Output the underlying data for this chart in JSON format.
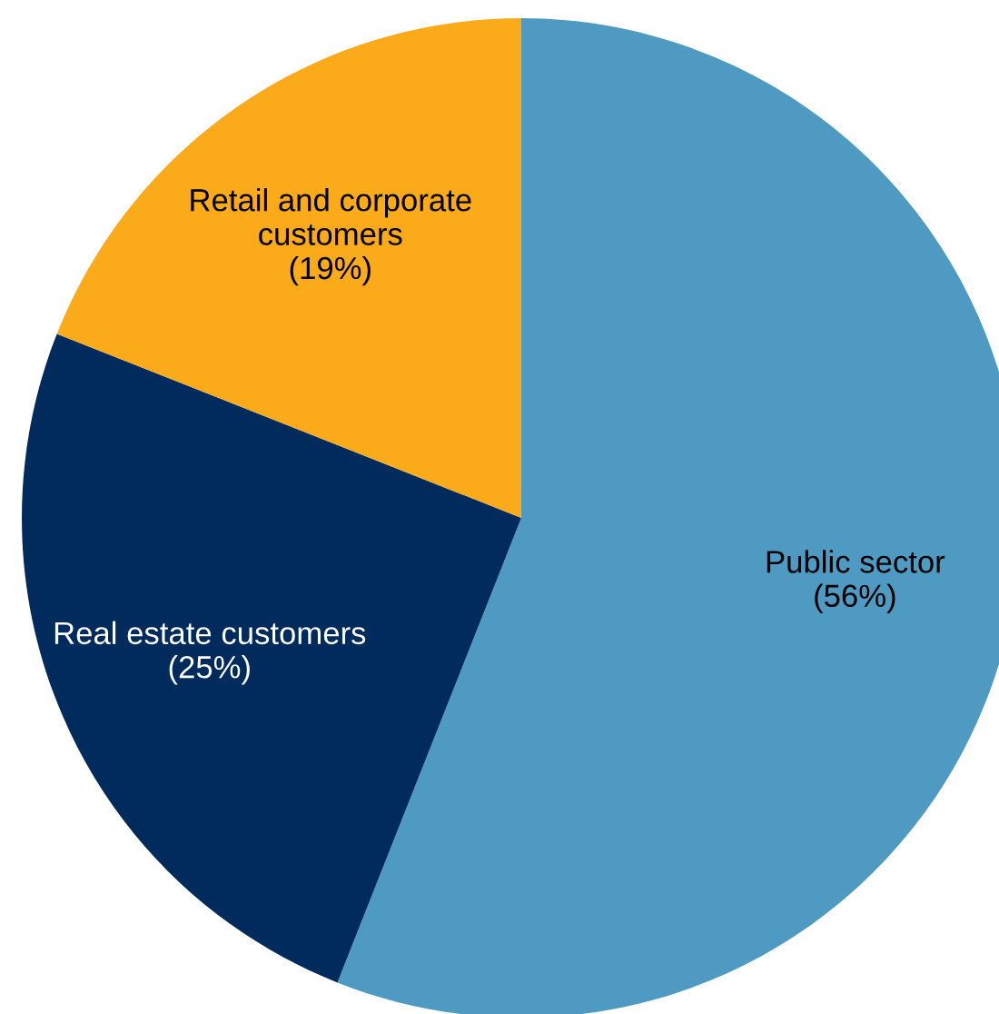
{
  "chart_data": {
    "type": "pie",
    "categories": [
      "Public sector",
      "Real estate customers",
      "Retail and corporate\ncustomers"
    ],
    "values": [
      56,
      25,
      19
    ],
    "value_labels": [
      "(56%)",
      "(25%)",
      "(19%)"
    ],
    "colors": [
      "#4f9ac3",
      "#002b5c",
      "#fbaa19"
    ],
    "legend": false
  }
}
